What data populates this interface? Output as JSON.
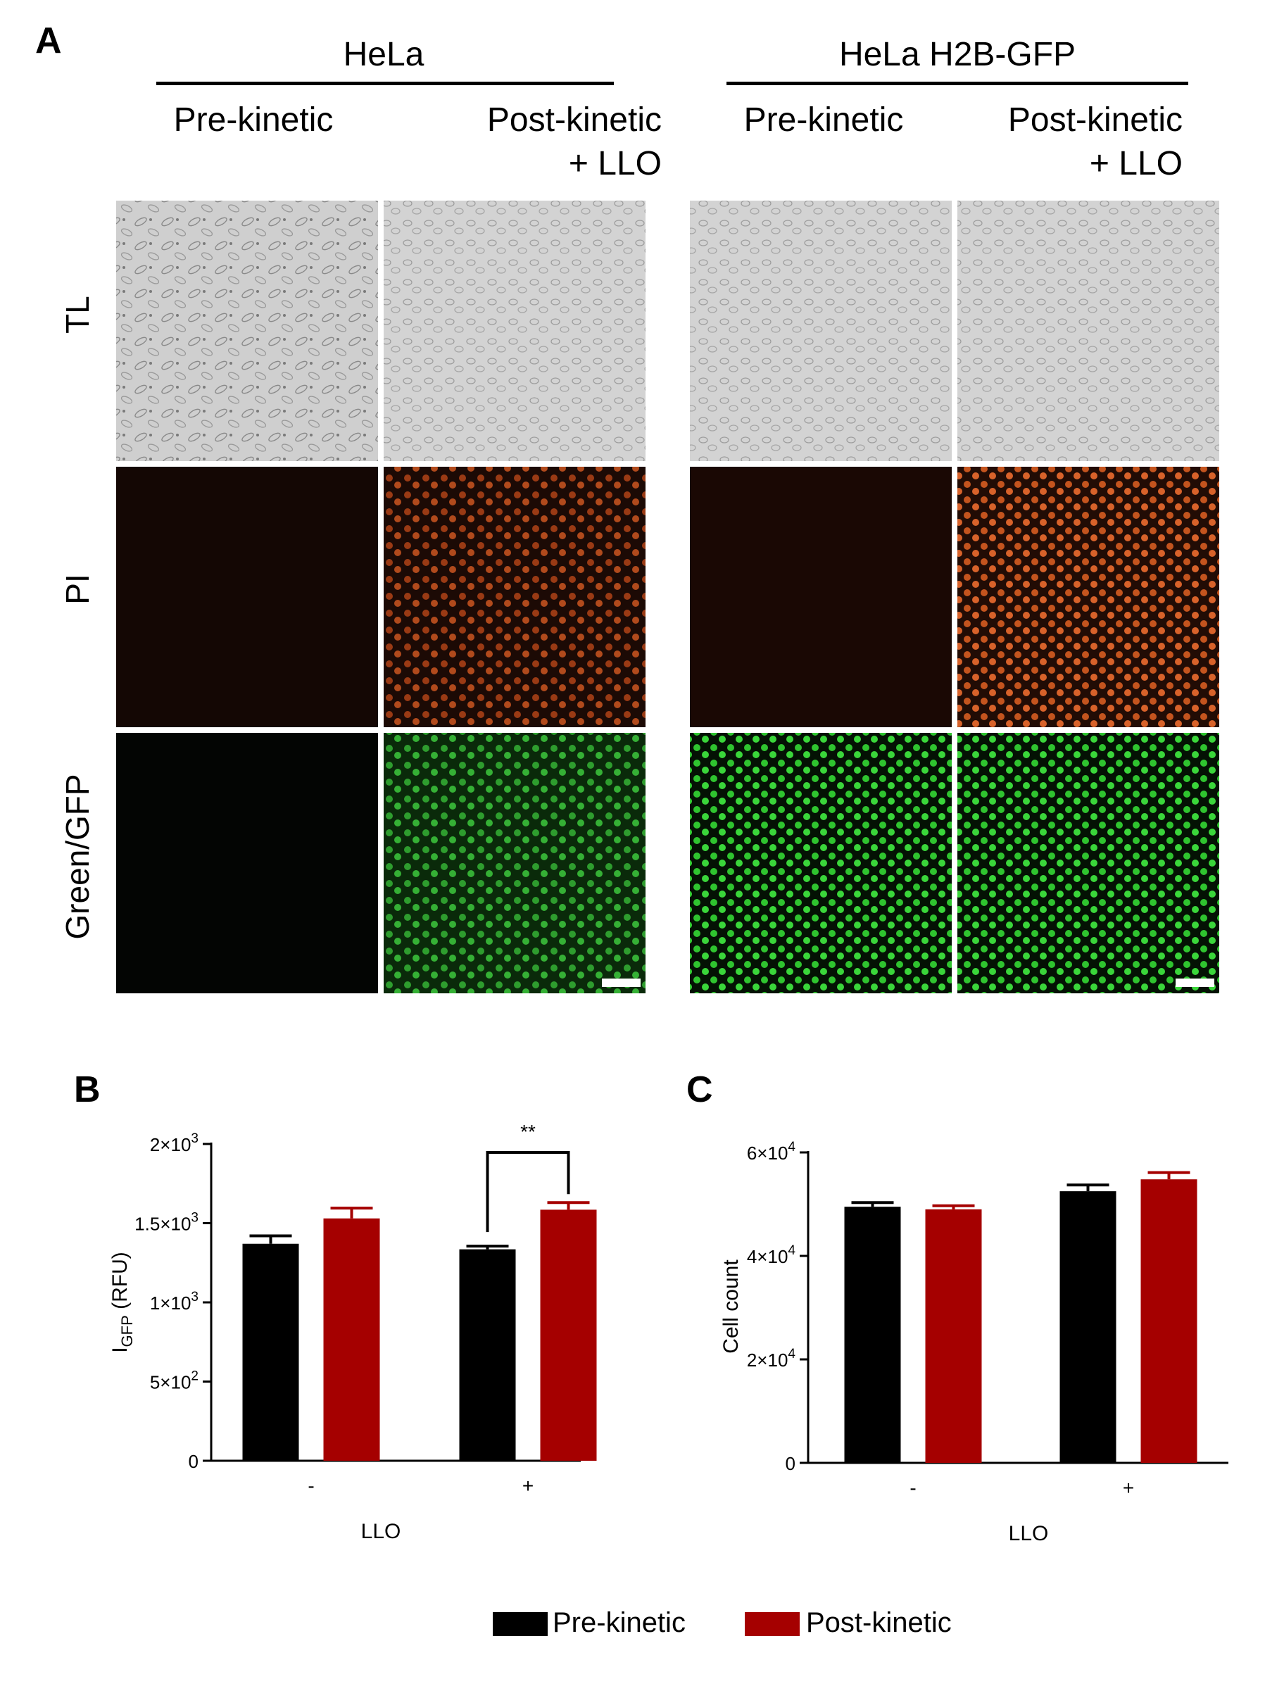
{
  "panel_a": {
    "letter": "A",
    "groups": [
      {
        "title": "HeLa",
        "conditions": [
          "Pre-kinetic",
          "Post-kinetic\n+ LLO"
        ]
      },
      {
        "title": "HeLa H2B-GFP",
        "conditions": [
          "Pre-kinetic",
          "Post-kinetic\n+ LLO"
        ]
      }
    ],
    "row_labels": [
      "TL",
      "PI",
      "Green/GFP"
    ]
  },
  "legend": {
    "items": [
      {
        "label": "Pre-kinetic",
        "color": "#000000"
      },
      {
        "label": "Post-kinetic",
        "color": "#a50000"
      }
    ]
  },
  "chart_data": [
    {
      "panel": "B",
      "type": "bar",
      "categories": [
        "-",
        "+"
      ],
      "xlabel": "LLO",
      "ylabel": "I_GFP (RFU)",
      "ylim": [
        0,
        2000
      ],
      "yticks": [
        0,
        500,
        1000,
        1500,
        2000
      ],
      "ytick_labels": [
        {
          "mantissa": "0",
          "exp": ""
        },
        {
          "mantissa": "5×10",
          "exp": "2"
        },
        {
          "mantissa": "1×10",
          "exp": "3"
        },
        {
          "mantissa": "1.5×10",
          "exp": "3"
        },
        {
          "mantissa": "2×10",
          "exp": "3"
        }
      ],
      "series": [
        {
          "name": "Pre-kinetic",
          "color": "#000000",
          "values": [
            1370,
            1335
          ],
          "errors": [
            50,
            20
          ]
        },
        {
          "name": "Post-kinetic",
          "color": "#a50000",
          "values": [
            1530,
            1585
          ],
          "errors": [
            65,
            45
          ]
        }
      ],
      "annotations": [
        {
          "text": "**",
          "category": "+"
        }
      ]
    },
    {
      "panel": "C",
      "type": "bar",
      "categories": [
        "-",
        "+"
      ],
      "xlabel": "LLO",
      "ylabel": "Cell count",
      "ylim": [
        0,
        60000
      ],
      "yticks": [
        0,
        20000,
        40000,
        60000
      ],
      "ytick_labels": [
        {
          "mantissa": "0",
          "exp": ""
        },
        {
          "mantissa": "2×10",
          "exp": "4"
        },
        {
          "mantissa": "4×10",
          "exp": "4"
        },
        {
          "mantissa": "6×10",
          "exp": "4"
        }
      ],
      "series": [
        {
          "name": "Pre-kinetic",
          "color": "#000000",
          "values": [
            49500,
            52500
          ],
          "errors": [
            800,
            1200
          ]
        },
        {
          "name": "Post-kinetic",
          "color": "#a50000",
          "values": [
            49000,
            54800
          ],
          "errors": [
            700,
            1300
          ]
        }
      ]
    }
  ]
}
